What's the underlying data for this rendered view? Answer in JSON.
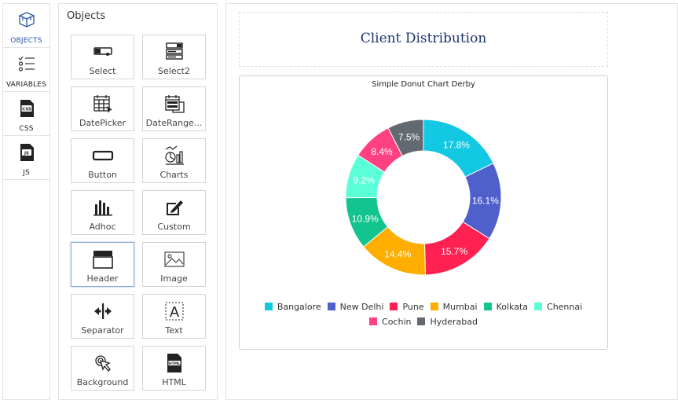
{
  "rail": {
    "items": [
      {
        "label": "OBJECTS",
        "icon": "objects-cube-icon",
        "active": true
      },
      {
        "label": "VARIABLES",
        "icon": "variables-list-icon"
      },
      {
        "label": "CSS",
        "icon": "css-file-icon",
        "badge": "CSS"
      },
      {
        "label": "JS",
        "icon": "js-file-icon",
        "badge": "JS"
      }
    ]
  },
  "objects": {
    "title": "Objects",
    "tiles": [
      {
        "label": "Select",
        "icon": "select-icon"
      },
      {
        "label": "Select2",
        "icon": "select2-icon"
      },
      {
        "label": "DatePicker",
        "icon": "datepicker-icon"
      },
      {
        "label": "DateRange...",
        "icon": "daterange-icon"
      },
      {
        "label": "Button",
        "icon": "button-icon"
      },
      {
        "label": "Charts",
        "icon": "charts-icon"
      },
      {
        "label": "Adhoc",
        "icon": "adhoc-icon"
      },
      {
        "label": "Custom",
        "icon": "custom-icon"
      },
      {
        "label": "Header",
        "icon": "header-icon",
        "selected": true
      },
      {
        "label": "Image",
        "icon": "image-icon"
      },
      {
        "label": "Separator",
        "icon": "separator-icon"
      },
      {
        "label": "Text",
        "icon": "text-icon",
        "glyph": "A"
      },
      {
        "label": "Background",
        "icon": "background-icon"
      },
      {
        "label": "HTML",
        "icon": "html-file-icon",
        "badge": "HTML"
      }
    ]
  },
  "canvas": {
    "header_text": "Client Distribution"
  },
  "chart_data": {
    "type": "pie",
    "subtype": "donut",
    "title": "Simple Donut Chart Derby",
    "legend_position": "bottom",
    "series": [
      {
        "name": "Bangalore",
        "value": 17.8,
        "label": "17.8%",
        "color": "#12C8E3"
      },
      {
        "name": "New Delhi",
        "value": 16.1,
        "label": "16.1%",
        "color": "#4F5FCC"
      },
      {
        "name": "Pune",
        "value": 15.7,
        "label": "15.7%",
        "color": "#FF2152"
      },
      {
        "name": "Mumbai",
        "value": 14.4,
        "label": "14.4%",
        "color": "#FFAE00"
      },
      {
        "name": "Kolkata",
        "value": 10.9,
        "label": "10.9%",
        "color": "#12C48E"
      },
      {
        "name": "Chennai",
        "value": 9.2,
        "label": "9.2%",
        "color": "#5AFFD8"
      },
      {
        "name": "Cochin",
        "value": 8.4,
        "label": "8.4%",
        "color": "#FF4081"
      },
      {
        "name": "Hyderabad",
        "value": 7.5,
        "label": "7.5%",
        "color": "#636970"
      }
    ]
  }
}
